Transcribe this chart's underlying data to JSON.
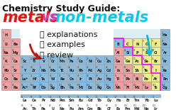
{
  "title_line1": "Chemistry Study Guide:",
  "metals_text": "metals",
  "vs_text": "vs",
  "nonmetals_text": "non-metals",
  "bullet1": "🤝 explanations",
  "bullet2": "👏 examples",
  "bullet3": "👍 review",
  "bg_color": "#ffffff",
  "metals_color": "#ee1111",
  "vs_color": "#cc44cc",
  "nonmetals_color": "#00ccee",
  "title_color": "#111111",
  "bullet_color": "#111111",
  "metal_cell_color": "#f0a0a0",
  "nonmetal_cell_color": "#eeee88",
  "metalloid_cell_color": "#88bbdd",
  "noble_cell_color": "#88bbdd",
  "h_cell_color": "#f0a0a0",
  "cell_border": "#999999",
  "sep_color": "#ff00ff",
  "arrow_red": "#cc1100",
  "arrow_cyan": "#00bbdd",
  "highlight_blue": "#bbddee"
}
